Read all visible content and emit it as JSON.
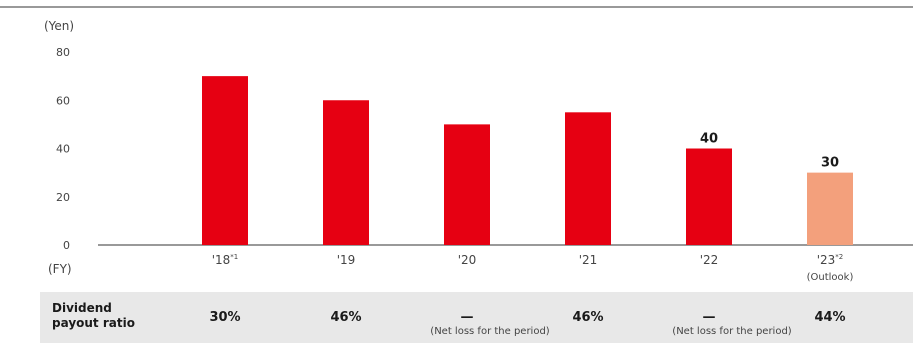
{
  "chart_data": {
    "type": "bar",
    "unit_label": "(Yen)",
    "x_axis_label": "(FY)",
    "yticks": [
      0,
      20,
      40,
      60,
      80
    ],
    "ylim": [
      0,
      80
    ],
    "grid": false,
    "categories": [
      {
        "label": "'18",
        "sup": "*1",
        "note": ""
      },
      {
        "label": "'19",
        "sup": "",
        "note": ""
      },
      {
        "label": "'20",
        "sup": "",
        "note": ""
      },
      {
        "label": "'21",
        "sup": "",
        "note": ""
      },
      {
        "label": "'22",
        "sup": "",
        "note": ""
      },
      {
        "label": "'23",
        "sup": "*2",
        "note": "(Outlook)"
      }
    ],
    "values": [
      70,
      60,
      50,
      55,
      40,
      30
    ],
    "data_labels": [
      "",
      "",
      "",
      "",
      "40",
      "30"
    ],
    "colors": {
      "actual": "#e60012",
      "outlook": "#f3a07c"
    },
    "bar_kinds": [
      "actual",
      "actual",
      "actual",
      "actual",
      "actual",
      "outlook"
    ]
  },
  "payout": {
    "label_line1": "Dividend",
    "label_line2": "payout ratio",
    "values": [
      "30%",
      "46%",
      "—",
      "46%",
      "—",
      "44%"
    ],
    "notes": [
      "",
      "",
      "(Net loss for the period)",
      "",
      "(Net loss for the period)",
      ""
    ]
  }
}
